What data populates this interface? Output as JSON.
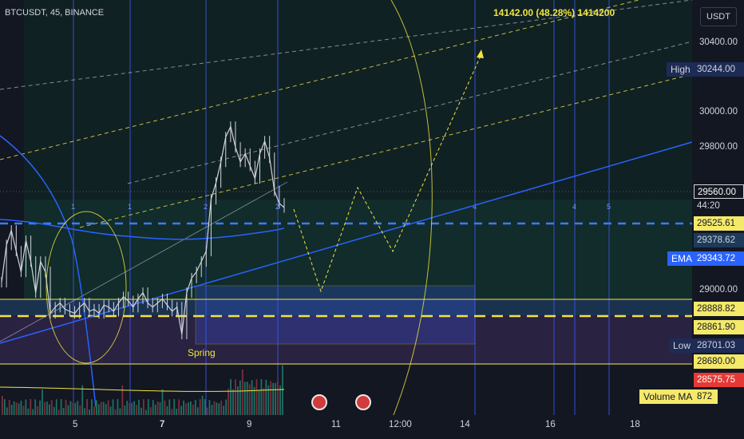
{
  "header": {
    "symbol": "BTCUSDT, 45, BINANCE",
    "measure": "14142.00 (48.28%) 1414200"
  },
  "currency": "USDT",
  "price_ticks": [
    {
      "label": "30400.00",
      "value": 30400
    },
    {
      "label": "30000.00",
      "value": 30000
    },
    {
      "label": "29800.00",
      "value": 29800
    },
    {
      "label": "29000.00",
      "value": 29000
    }
  ],
  "price_labels": {
    "high": {
      "tag": "High",
      "value": "30244.00"
    },
    "current": {
      "value": "29560.00",
      "countdown": "44:20"
    },
    "level_1": "29525.61",
    "level_2": "29378.62",
    "ema": {
      "tag": "EMA",
      "value": "29343.72"
    },
    "level_3": "28888.82",
    "level_4": "28861.90",
    "low": {
      "tag": "Low",
      "value": "28701.03"
    },
    "level_5": "28680.00",
    "level_6": "28575.75",
    "volume_ma": {
      "tag": "Volume MA",
      "value": "872"
    }
  },
  "time_ticks": [
    {
      "label": "5"
    },
    {
      "label": "7"
    },
    {
      "label": "9"
    },
    {
      "label": "11"
    },
    {
      "label": "12:00"
    },
    {
      "label": "14"
    },
    {
      "label": "16"
    },
    {
      "label": "18"
    }
  ],
  "annotation": "Spring",
  "cycle_labels": [
    "1",
    "1",
    "2",
    "2",
    "4",
    "4",
    "5"
  ],
  "colors": {
    "background": "#131722",
    "bull": "#d1d4dc",
    "vline": "#3d5afe",
    "yellow": "#f0e442",
    "ema": "#2962ff"
  },
  "chart_data": {
    "type": "line",
    "title": "BTCUSDT, 45, BINANCE",
    "y_unit": "USDT",
    "ylim": [
      28560,
      30560
    ],
    "x_ticks": [
      "5",
      "7",
      "9",
      "11",
      "12:00",
      "14",
      "16",
      "18"
    ],
    "series": [
      {
        "values": [
          29200,
          29380,
          29450,
          29350,
          29250,
          29400,
          29300,
          29150,
          29300,
          29250,
          29050,
          29080,
          29100,
          29070,
          29060,
          29050,
          29080,
          29100,
          29060,
          29070,
          29050,
          29090,
          29080,
          29060,
          29100,
          29130,
          29110,
          29080,
          29120,
          29150,
          29100,
          29080,
          29100,
          29120,
          29090,
          29060,
          29080,
          28950,
          29150,
          29220,
          29250,
          29300,
          29350,
          29600,
          29680,
          29780,
          29900,
          29950,
          29850,
          29780,
          29820,
          29760,
          29700,
          29820,
          29880,
          29800,
          29640,
          29580,
          29560
        ]
      }
    ]
  }
}
